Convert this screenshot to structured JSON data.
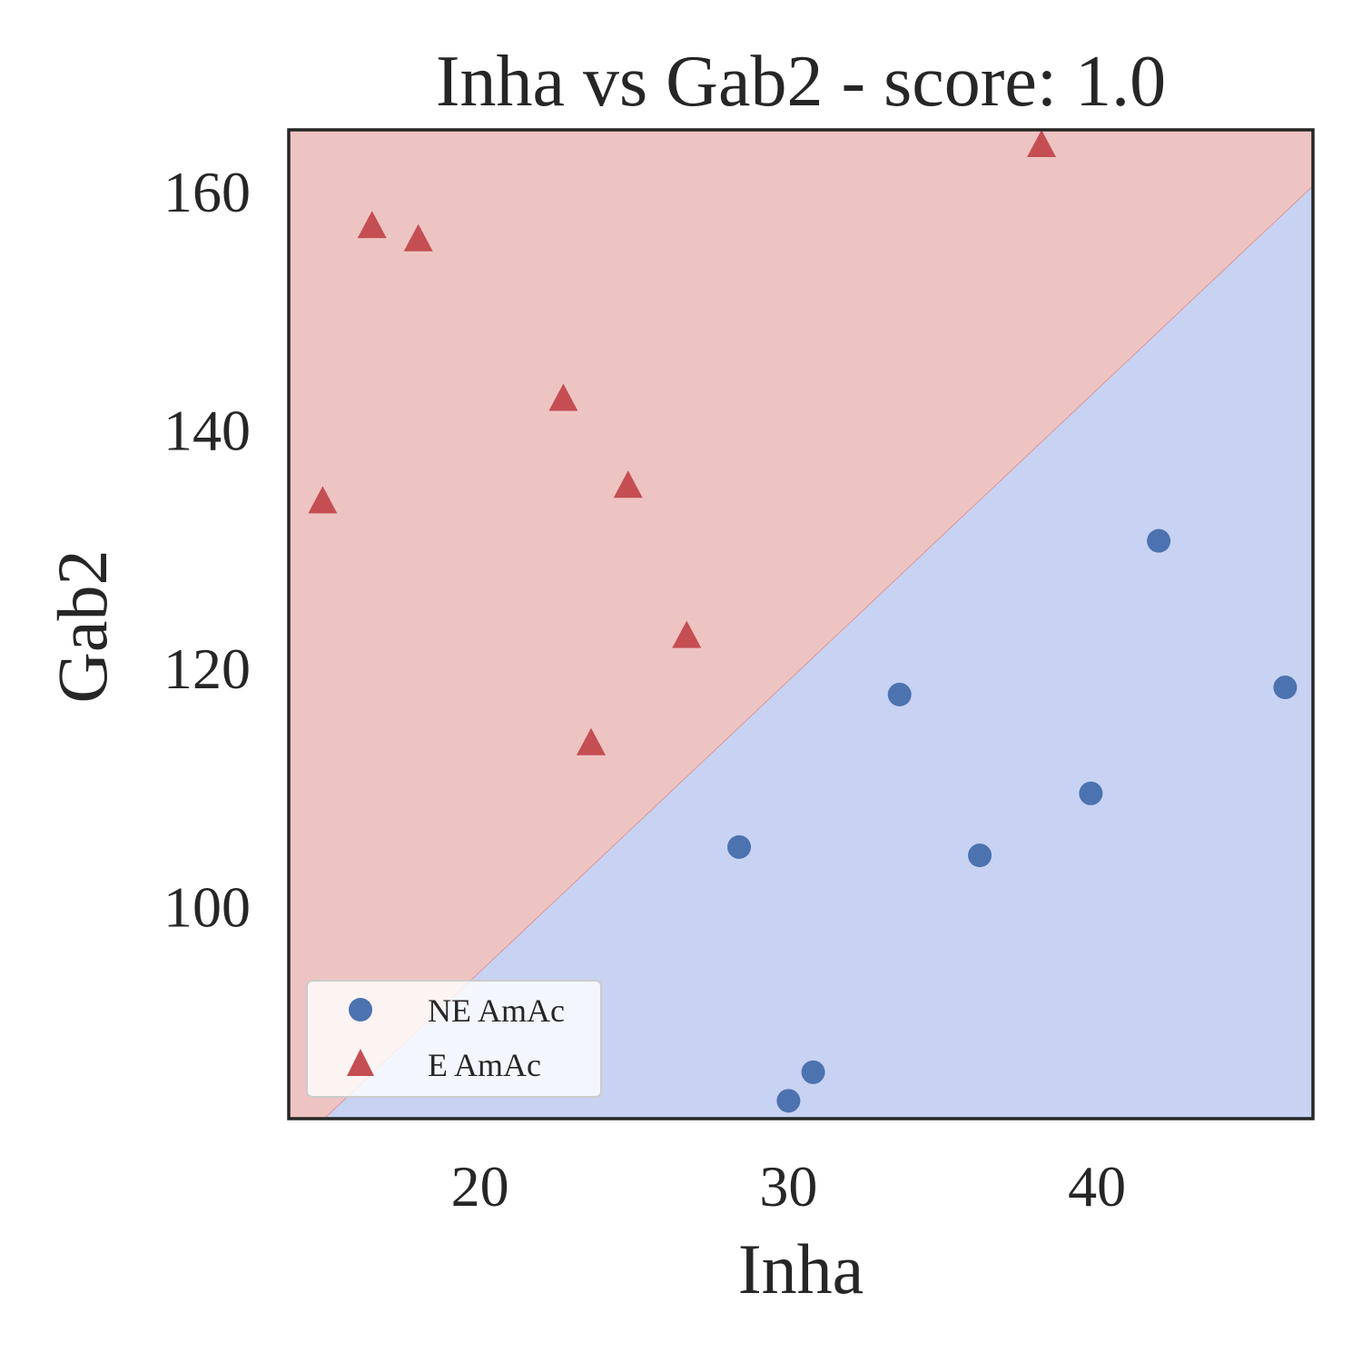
{
  "chart_data": {
    "type": "scatter",
    "title": "Inha vs Gab2 - score: 1.0",
    "xlabel": "Inha",
    "ylabel": "Gab2",
    "xlim": [
      13.8,
      47.0
    ],
    "ylim": [
      82.2,
      165.2
    ],
    "xticks": [
      20,
      30,
      40
    ],
    "yticks": [
      100,
      120,
      140,
      160
    ],
    "grid": false,
    "legend_position": "lower-left",
    "decision_boundary": {
      "points": [
        [
          14.95,
          82.2
        ],
        [
          47.0,
          160.5
        ]
      ],
      "regions": [
        {
          "class": "E AmAc",
          "side": "above",
          "color": "#eec4c2"
        },
        {
          "class": "NE AmAc",
          "side": "below",
          "color": "#c8d2f2"
        }
      ]
    },
    "series": [
      {
        "name": "NE AmAc",
        "marker": "circle",
        "color": "#4c72b0",
        "points": [
          [
            28.4,
            105.0
          ],
          [
            36.2,
            104.3
          ],
          [
            33.6,
            117.8
          ],
          [
            39.8,
            109.5
          ],
          [
            42.0,
            130.7
          ],
          [
            46.1,
            118.4
          ],
          [
            30.8,
            86.1
          ],
          [
            30.0,
            83.7
          ]
        ]
      },
      {
        "name": "E AmAc",
        "marker": "triangle",
        "color": "#c44e52",
        "points": [
          [
            16.5,
            157.1
          ],
          [
            18.0,
            156.0
          ],
          [
            14.9,
            134.0
          ],
          [
            22.7,
            142.6
          ],
          [
            24.8,
            135.3
          ],
          [
            26.7,
            122.7
          ],
          [
            23.6,
            113.7
          ],
          [
            38.2,
            163.9
          ]
        ]
      }
    ]
  }
}
